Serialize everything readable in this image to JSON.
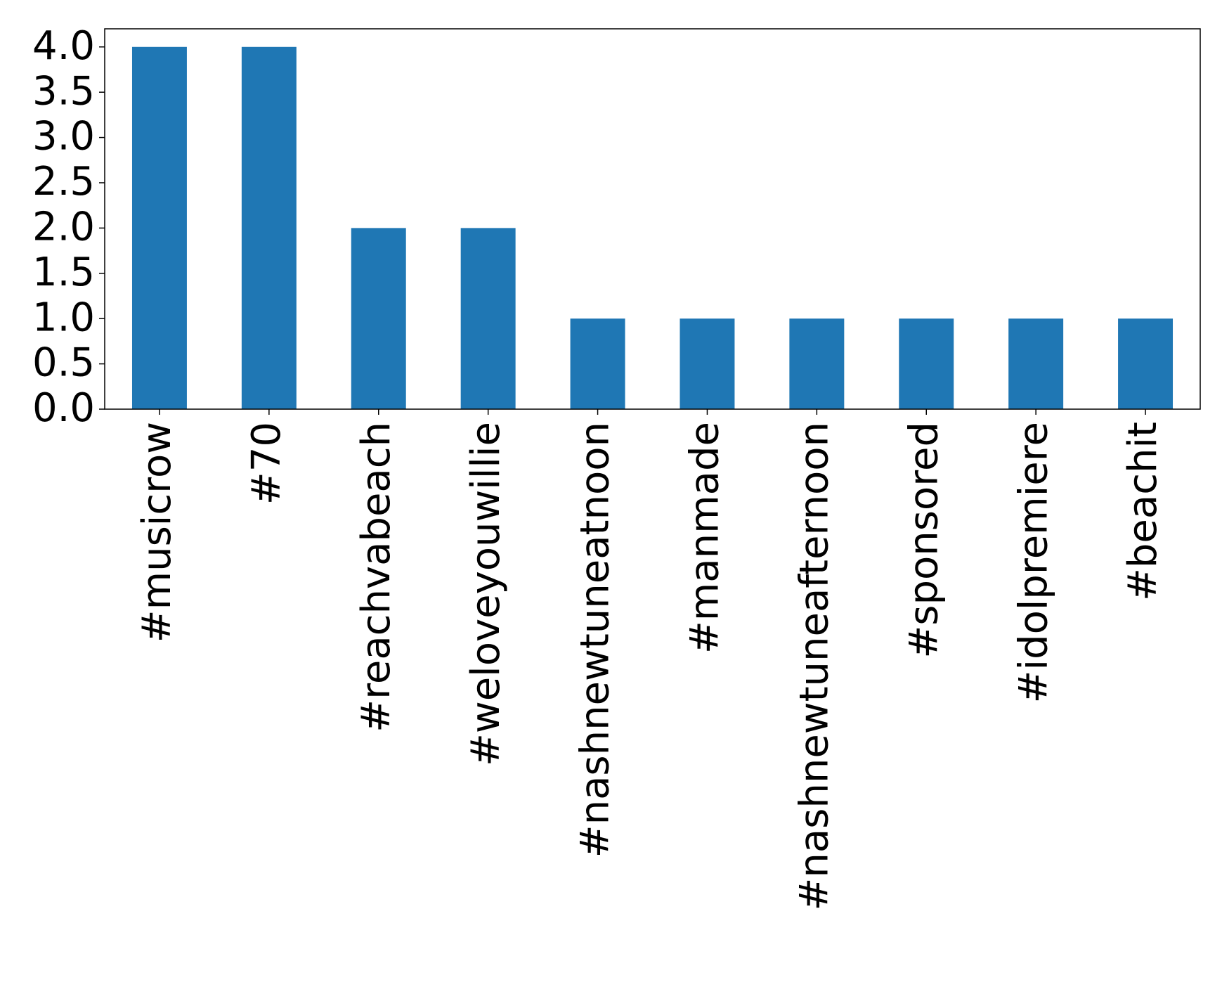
{
  "chart_data": {
    "type": "bar",
    "categories": [
      "#musicrow",
      "#70",
      "#reachvabeach",
      "#weloveyouwillie",
      "#nashnewtuneatnoon",
      "#manmade",
      "#nashnewtuneafternoon",
      "#sponsored",
      "#idolpremiere",
      "#beachit"
    ],
    "values": [
      4,
      4,
      2,
      2,
      1,
      1,
      1,
      1,
      1,
      1
    ],
    "color": "#1f77b4",
    "ylim": [
      0,
      4.2
    ],
    "yticks": [
      {
        "value": 0,
        "label": "0.0"
      },
      0.5,
      {
        "value": 1,
        "label": "1.0"
      },
      1.5,
      {
        "value": 2,
        "label": "2.0"
      },
      2.5,
      {
        "value": 3,
        "label": "3.0"
      },
      3.5,
      {
        "value": 4,
        "label": "4.0"
      }
    ],
    "grid": false
  }
}
